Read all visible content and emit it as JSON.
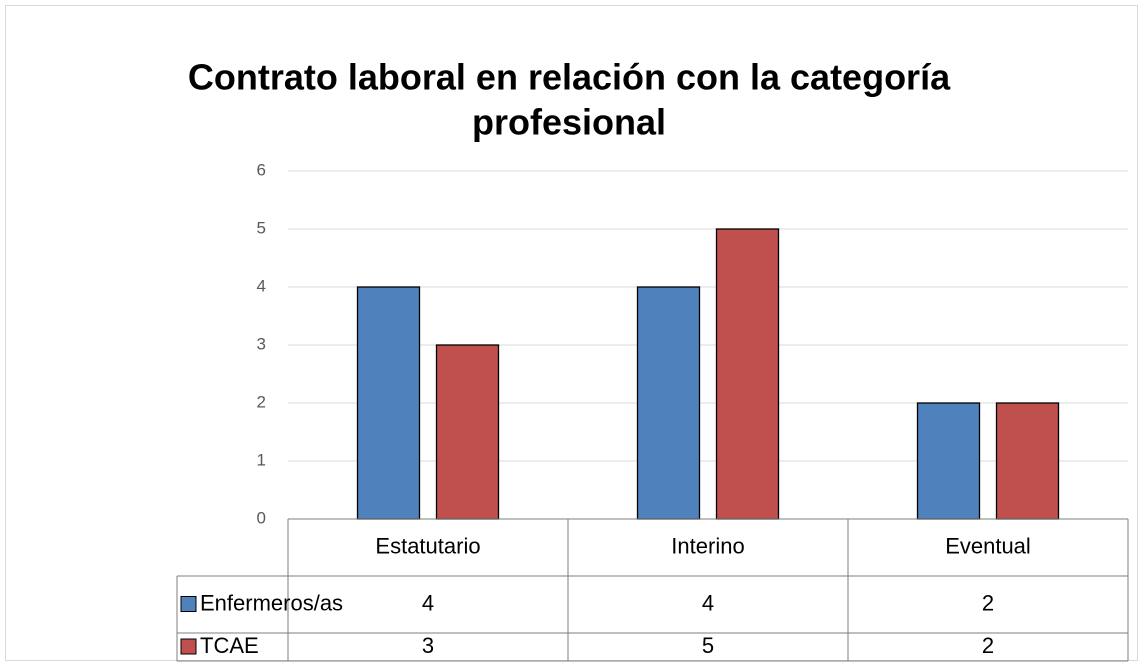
{
  "chart_data": {
    "type": "bar",
    "title": [
      "Contrato laboral en relación con la categoría",
      "profesional"
    ],
    "categories": [
      "Estatutario",
      "Interino",
      "Eventual"
    ],
    "series": [
      {
        "name": "Enfermeros/as",
        "color": "#4f81bd",
        "values": [
          4,
          4,
          2
        ]
      },
      {
        "name": "TCAE",
        "color": "#c0504d",
        "values": [
          3,
          5,
          2
        ]
      }
    ],
    "ylim": [
      0,
      6
    ],
    "yticks": [
      0,
      1,
      2,
      3,
      4,
      5,
      6
    ],
    "grid": true,
    "data_table": true
  }
}
